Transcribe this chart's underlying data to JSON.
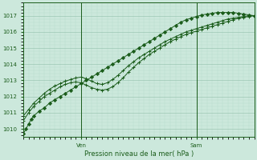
{
  "xlabel": "Pression niveau de la mer( hPa )",
  "bg_color": "#cce8dc",
  "grid_color_major": "#9dc8b4",
  "grid_color_minor": "#b8dccb",
  "line_color": "#1a5c1a",
  "ylim": [
    1009.5,
    1017.8
  ],
  "xlim": [
    0,
    44
  ],
  "ven_x": 11,
  "sam_x": 33,
  "yticks": [
    1010,
    1011,
    1012,
    1013,
    1014,
    1015,
    1016,
    1017
  ],
  "series": {
    "s1_x": [
      0,
      0.5,
      1,
      1.5,
      2,
      3,
      4,
      5,
      6,
      7,
      8,
      9,
      10,
      11,
      12,
      13,
      14,
      15,
      16,
      17,
      18,
      19,
      20,
      21,
      22,
      23,
      24,
      25,
      26,
      27,
      28,
      29,
      30,
      31,
      32,
      33,
      34,
      35,
      36,
      37,
      38,
      39,
      40,
      41,
      42,
      43,
      44
    ],
    "s1_y": [
      1009.7,
      1010.0,
      1010.3,
      1010.6,
      1010.8,
      1011.1,
      1011.3,
      1011.6,
      1011.8,
      1012.0,
      1012.2,
      1012.4,
      1012.6,
      1012.8,
      1013.0,
      1013.2,
      1013.4,
      1013.6,
      1013.8,
      1014.0,
      1014.2,
      1014.4,
      1014.6,
      1014.8,
      1015.0,
      1015.2,
      1015.4,
      1015.6,
      1015.8,
      1016.0,
      1016.2,
      1016.4,
      1016.6,
      1016.75,
      1016.85,
      1016.95,
      1017.05,
      1017.1,
      1017.15,
      1017.2,
      1017.2,
      1017.2,
      1017.2,
      1017.15,
      1017.1,
      1017.05,
      1017.0
    ],
    "s2_x": [
      0,
      1,
      2,
      3,
      4,
      5,
      6,
      7,
      8,
      9,
      10,
      11,
      12,
      13,
      14,
      15,
      16,
      17,
      18,
      19,
      20,
      21,
      22,
      23,
      24,
      25,
      26,
      27,
      28,
      29,
      30,
      31,
      32,
      33,
      34,
      35,
      36,
      37,
      38,
      39,
      40,
      41,
      42,
      43,
      44
    ],
    "s2_y": [
      1010.5,
      1011.0,
      1011.4,
      1011.7,
      1012.0,
      1012.2,
      1012.4,
      1012.6,
      1012.75,
      1012.85,
      1012.9,
      1012.85,
      1012.7,
      1012.55,
      1012.45,
      1012.4,
      1012.45,
      1012.6,
      1012.85,
      1013.15,
      1013.5,
      1013.8,
      1014.1,
      1014.35,
      1014.6,
      1014.8,
      1015.0,
      1015.2,
      1015.4,
      1015.55,
      1015.7,
      1015.85,
      1015.95,
      1016.05,
      1016.15,
      1016.25,
      1016.35,
      1016.45,
      1016.55,
      1016.65,
      1016.75,
      1016.85,
      1016.9,
      1016.95,
      1017.0
    ],
    "s3_x": [
      0,
      1,
      2,
      3,
      4,
      5,
      6,
      7,
      8,
      9,
      10,
      11,
      12,
      13,
      14,
      15,
      16,
      17,
      18,
      19,
      20,
      21,
      22,
      23,
      24,
      25,
      26,
      27,
      28,
      29,
      30,
      31,
      32,
      33,
      34,
      35,
      36,
      37,
      38,
      39,
      40,
      41,
      42,
      43,
      44
    ],
    "s3_y": [
      1010.8,
      1011.2,
      1011.6,
      1011.9,
      1012.2,
      1012.45,
      1012.65,
      1012.8,
      1012.95,
      1013.05,
      1013.15,
      1013.2,
      1013.1,
      1012.95,
      1012.8,
      1012.75,
      1012.85,
      1013.05,
      1013.3,
      1013.6,
      1013.9,
      1014.15,
      1014.4,
      1014.6,
      1014.8,
      1015.0,
      1015.2,
      1015.4,
      1015.55,
      1015.7,
      1015.85,
      1016.0,
      1016.1,
      1016.2,
      1016.3,
      1016.4,
      1016.5,
      1016.6,
      1016.7,
      1016.8,
      1016.85,
      1016.9,
      1016.95,
      1017.0,
      1017.0
    ]
  }
}
